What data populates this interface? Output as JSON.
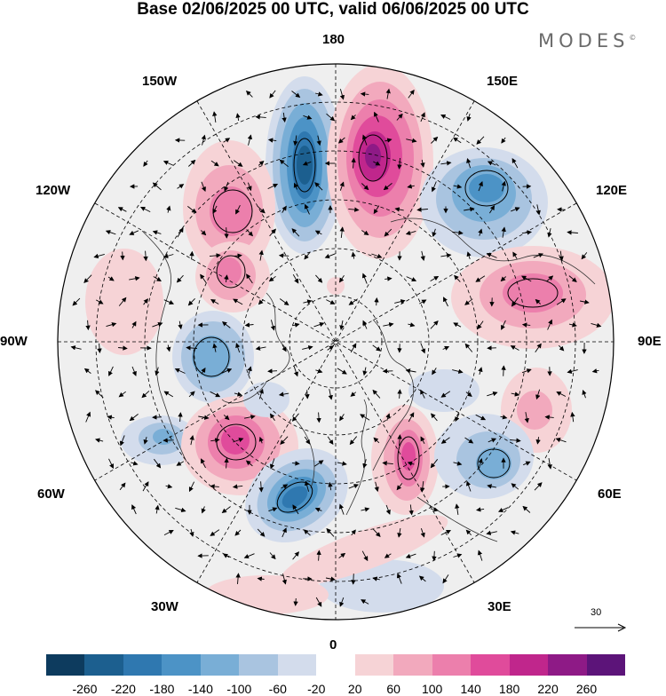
{
  "title": "Base 02/06/2025 00 UTC, valid 06/06/2025 00 UTC",
  "logo": "MODES",
  "logo_mark": "©",
  "longitude_labels": {
    "lon_180": "180",
    "lon_150W": "150W",
    "lon_150E": "150E",
    "lon_120W": "120W",
    "lon_120E": "120E",
    "lon_90W": "90W",
    "lon_90E": "90E",
    "lon_60W": "60W",
    "lon_60E": "60E",
    "lon_30W": "30W",
    "lon_30E": "30E",
    "lon_0": "0"
  },
  "reference_vector": {
    "label": "30"
  },
  "colorbar": {
    "ticks": [
      "-260",
      "-220",
      "-180",
      "-140",
      "-100",
      "-60",
      "-20",
      "20",
      "60",
      "100",
      "140",
      "180",
      "220",
      "260"
    ],
    "colors": [
      "#0d3b5e",
      "#1c5f8f",
      "#2f78b0",
      "#4c93c6",
      "#79aed6",
      "#a9c4e0",
      "#d3dcec",
      "#ffffff",
      "#f6d3d6",
      "#f2a9bd",
      "#ec7fac",
      "#e04b9b",
      "#c0268c",
      "#8e1a86",
      "#5c1479"
    ]
  },
  "map_features": {
    "projection": "north-polar-stereographic",
    "field": "anomaly shading with wind vectors",
    "anomalies": [
      {
        "name": "low-north-pacific-west",
        "sign": "negative",
        "value": -260
      },
      {
        "name": "high-north-pacific-east",
        "sign": "positive",
        "value": 240
      },
      {
        "name": "low-east-siberia",
        "sign": "negative",
        "value": -160
      },
      {
        "name": "high-western-canada",
        "sign": "positive",
        "value": 140
      },
      {
        "name": "high-central-canada",
        "sign": "positive",
        "value": 150
      },
      {
        "name": "high-west-siberia",
        "sign": "positive",
        "value": 150
      },
      {
        "name": "low-hudson-bay",
        "sign": "negative",
        "value": -130
      },
      {
        "name": "high-central-asia",
        "sign": "positive",
        "value": 60
      },
      {
        "name": "low-labrador-sea",
        "sign": "negative",
        "value": -120
      },
      {
        "name": "high-north-atlantic-west",
        "sign": "positive",
        "value": 160
      },
      {
        "name": "low-greenland-atlantic",
        "sign": "negative",
        "value": -240
      },
      {
        "name": "high-scandinavia",
        "sign": "positive",
        "value": 170
      },
      {
        "name": "low-west-siberia-south",
        "sign": "negative",
        "value": -140
      },
      {
        "name": "low-east-europe",
        "sign": "negative",
        "value": -60
      }
    ]
  }
}
